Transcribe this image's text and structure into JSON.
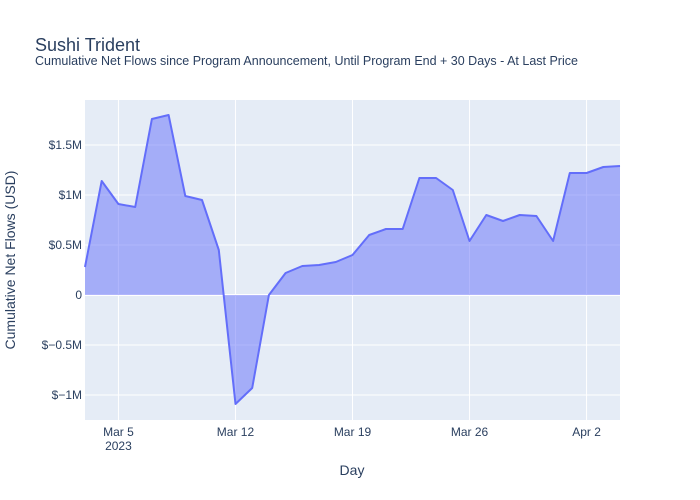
{
  "chart_data": {
    "type": "area",
    "title": "Sushi Trident",
    "subtitle": "Cumulative Net Flows since Program Announcement, Until Program End + 30 Days - At Last Price",
    "xlabel": "Day",
    "ylabel": "Cumulative Net Flows (USD)",
    "x_range": [
      "2023-03-03",
      "2023-04-04"
    ],
    "ylim": [
      -1250000,
      1950000
    ],
    "x_ticks": [
      {
        "date": "2023-03-05",
        "label": "Mar 5",
        "sublabel": "2023"
      },
      {
        "date": "2023-03-12",
        "label": "Mar 12",
        "sublabel": ""
      },
      {
        "date": "2023-03-19",
        "label": "Mar 19",
        "sublabel": ""
      },
      {
        "date": "2023-03-26",
        "label": "Mar 26",
        "sublabel": ""
      },
      {
        "date": "2023-04-02",
        "label": "Apr 2",
        "sublabel": ""
      }
    ],
    "y_ticks": [
      {
        "value": -1000000,
        "label": "$−1M"
      },
      {
        "value": -500000,
        "label": "$−0.5M"
      },
      {
        "value": 0,
        "label": "0"
      },
      {
        "value": 500000,
        "label": "$0.5M"
      },
      {
        "value": 1000000,
        "label": "$1M"
      },
      {
        "value": 1500000,
        "label": "$1.5M"
      }
    ],
    "grid": true,
    "colors": {
      "line": "#636efa",
      "fill": "rgba(99,110,250,0.5)",
      "plot_bg": "#e5ecf6",
      "grid": "#ffffff"
    },
    "series": [
      {
        "points": [
          {
            "x": "2023-03-03",
            "y": 280000
          },
          {
            "x": "2023-03-04",
            "y": 1140000
          },
          {
            "x": "2023-03-05",
            "y": 910000
          },
          {
            "x": "2023-03-06",
            "y": 880000
          },
          {
            "x": "2023-03-07",
            "y": 1760000
          },
          {
            "x": "2023-03-08",
            "y": 1800000
          },
          {
            "x": "2023-03-09",
            "y": 990000
          },
          {
            "x": "2023-03-10",
            "y": 950000
          },
          {
            "x": "2023-03-11",
            "y": 450000
          },
          {
            "x": "2023-03-12",
            "y": -1090000
          },
          {
            "x": "2023-03-13",
            "y": -930000
          },
          {
            "x": "2023-03-14",
            "y": 0
          },
          {
            "x": "2023-03-15",
            "y": 220000
          },
          {
            "x": "2023-03-16",
            "y": 290000
          },
          {
            "x": "2023-03-17",
            "y": 300000
          },
          {
            "x": "2023-03-18",
            "y": 330000
          },
          {
            "x": "2023-03-19",
            "y": 400000
          },
          {
            "x": "2023-03-20",
            "y": 600000
          },
          {
            "x": "2023-03-21",
            "y": 660000
          },
          {
            "x": "2023-03-22",
            "y": 660000
          },
          {
            "x": "2023-03-23",
            "y": 1170000
          },
          {
            "x": "2023-03-24",
            "y": 1170000
          },
          {
            "x": "2023-03-25",
            "y": 1050000
          },
          {
            "x": "2023-03-26",
            "y": 540000
          },
          {
            "x": "2023-03-27",
            "y": 800000
          },
          {
            "x": "2023-03-28",
            "y": 740000
          },
          {
            "x": "2023-03-29",
            "y": 800000
          },
          {
            "x": "2023-03-30",
            "y": 790000
          },
          {
            "x": "2023-03-31",
            "y": 540000
          },
          {
            "x": "2023-04-01",
            "y": 1220000
          },
          {
            "x": "2023-04-02",
            "y": 1220000
          },
          {
            "x": "2023-04-03",
            "y": 1280000
          },
          {
            "x": "2023-04-04",
            "y": 1290000
          }
        ]
      }
    ]
  }
}
